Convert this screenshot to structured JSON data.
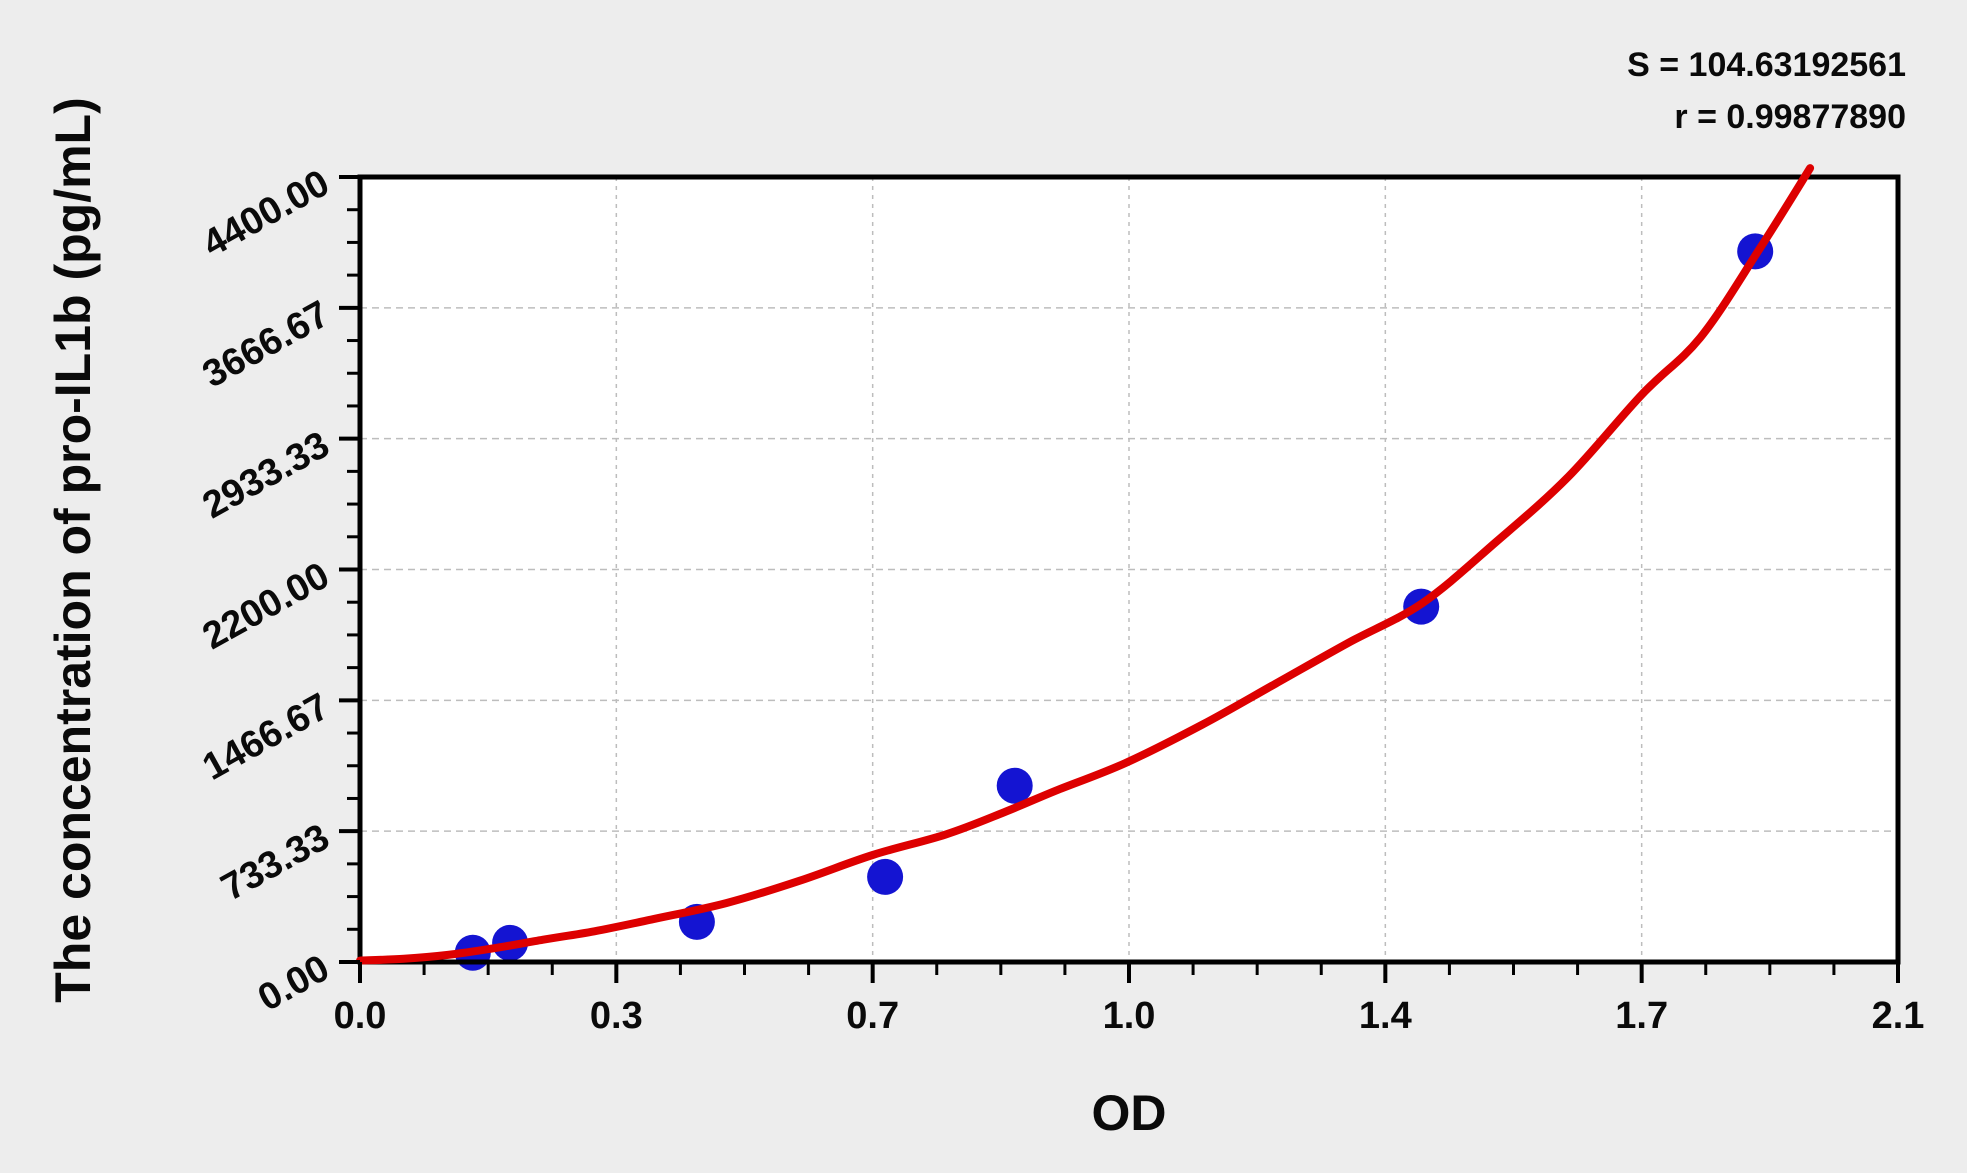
{
  "page": {
    "background_color": "#ededed",
    "plot_background_color": "#ffffff"
  },
  "annotation": {
    "s_text": "S = 104.63192561",
    "r_text": "r = 0.99877890"
  },
  "chart_data": {
    "type": "scatter",
    "title": "",
    "xlabel": "OD",
    "ylabel": "The concentration of pro-IL1b (pg/mL)",
    "xlim": [
      0,
      2.1
    ],
    "ylim": [
      0,
      4400
    ],
    "x_major_tick_values": [
      0,
      0.35,
      0.7,
      1.05,
      1.4,
      1.75,
      2.1
    ],
    "x_tick_labels": [
      "0.0",
      "0.3",
      "0.7",
      "1.0",
      "1.4",
      "1.7",
      "2.1"
    ],
    "y_major_tick_values": [
      0,
      733.33,
      1466.67,
      2200.0,
      2933.33,
      3666.67,
      4400.0
    ],
    "y_tick_labels": [
      "0.00",
      "733.33",
      "1466.67",
      "2200.00",
      "2933.33",
      "3666.67",
      "4400.00"
    ],
    "minor_ticks_per_interval": 3,
    "grid": {
      "show": true,
      "style": "dashed",
      "at_major_ticks": true
    },
    "stats": {
      "S": "104.63192561",
      "r": "0.99877890"
    },
    "series": [
      {
        "name": "standard-points",
        "type": "scatter",
        "color": "#1414d2",
        "marker_radius": 18,
        "points": [
          {
            "od": 0.154,
            "conc": 52
          },
          {
            "od": 0.205,
            "conc": 107
          },
          {
            "od": 0.46,
            "conc": 225
          },
          {
            "od": 0.717,
            "conc": 477
          },
          {
            "od": 0.894,
            "conc": 988
          },
          {
            "od": 1.449,
            "conc": 1992
          },
          {
            "od": 1.905,
            "conc": 3983
          }
        ]
      },
      {
        "name": "fitted-standard-curve",
        "type": "line",
        "color": "#dd0000",
        "stroke_width": 8,
        "samples": [
          [
            0.0,
            8
          ],
          [
            0.06,
            18
          ],
          [
            0.12,
            40
          ],
          [
            0.18,
            75
          ],
          [
            0.25,
            125
          ],
          [
            0.32,
            172
          ],
          [
            0.4,
            240
          ],
          [
            0.5,
            330
          ],
          [
            0.6,
            455
          ],
          [
            0.7,
            600
          ],
          [
            0.8,
            715
          ],
          [
            0.88,
            840
          ],
          [
            0.95,
            960
          ],
          [
            1.045,
            1115
          ],
          [
            1.15,
            1330
          ],
          [
            1.25,
            1560
          ],
          [
            1.35,
            1790
          ],
          [
            1.45,
            2010
          ],
          [
            1.55,
            2350
          ],
          [
            1.65,
            2720
          ],
          [
            1.75,
            3180
          ],
          [
            1.83,
            3500
          ],
          [
            1.91,
            3990
          ],
          [
            1.98,
            4450
          ]
        ]
      }
    ],
    "colors": {
      "axis": "#000000",
      "grid": "#bdbdbd",
      "points": "#1414d2",
      "curve": "#dd0000"
    }
  }
}
